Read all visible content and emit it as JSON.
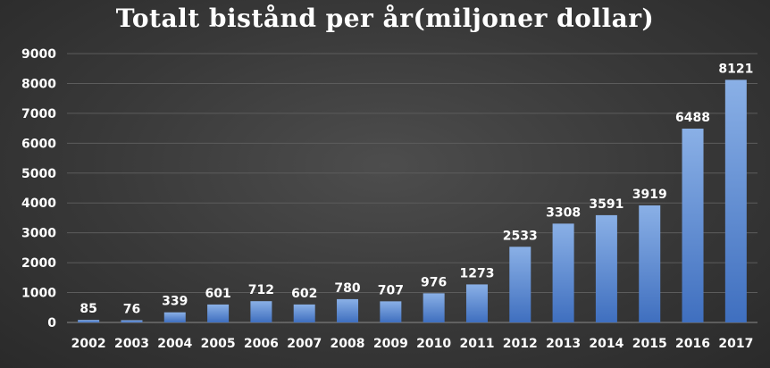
{
  "chart_data": {
    "type": "bar",
    "title": "Totalt bistånd per år(miljoner dollar)",
    "xlabel": "",
    "ylabel": "",
    "categories": [
      "2002",
      "2003",
      "2004",
      "2005",
      "2006",
      "2007",
      "2008",
      "2009",
      "2010",
      "2011",
      "2012",
      "2013",
      "2014",
      "2015",
      "2016",
      "2017"
    ],
    "values": [
      85,
      76,
      339,
      601,
      712,
      602,
      780,
      707,
      976,
      1273,
      2533,
      3308,
      3591,
      3919,
      6488,
      8121
    ],
    "ylim": [
      0,
      9000
    ],
    "yticks": [
      0,
      1000,
      2000,
      3000,
      4000,
      5000,
      6000,
      7000,
      8000,
      9000
    ],
    "grid": true,
    "legend": "none",
    "colors": {
      "bar_top": "#8ab0e6",
      "bar_bottom": "#3f6fbf",
      "grid": "#5c5c5c",
      "text": "#ffffff"
    }
  }
}
